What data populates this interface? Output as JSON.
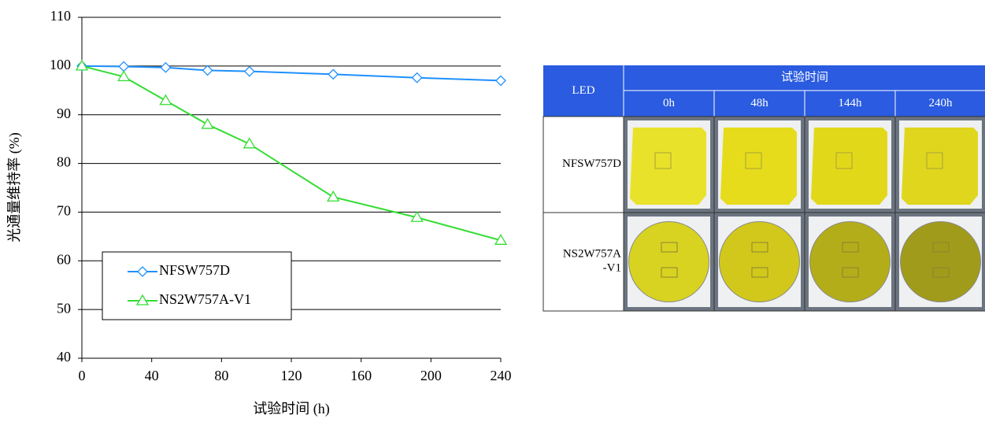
{
  "chart_data": {
    "type": "line",
    "x_label": "试验时间 (h)",
    "y_label": "光通量维持率 (%)",
    "x": [
      0,
      24,
      48,
      72,
      96,
      144,
      192,
      240
    ],
    "series": [
      {
        "name": "NFSW757D",
        "color": "#1e90ff",
        "marker": "diamond",
        "values": [
          100,
          99.9,
          99.7,
          99.1,
          98.9,
          98.3,
          97.6,
          97.0
        ]
      },
      {
        "name": "NS2W757A-V1",
        "color": "#33dd33",
        "marker": "triangle",
        "values": [
          100,
          97.8,
          92.9,
          88,
          84,
          73.1,
          68.9,
          64.2
        ]
      }
    ],
    "xlim": [
      0,
      240
    ],
    "xticks": [
      0,
      40,
      80,
      120,
      160,
      200,
      240
    ],
    "ylim": [
      40,
      110
    ],
    "yticks": [
      40,
      50,
      60,
      70,
      80,
      90,
      100,
      110
    ],
    "grid": true,
    "legend": "lower-left"
  },
  "table": {
    "corner": "LED",
    "group": "试验时间",
    "times": [
      "0h",
      "48h",
      "144h",
      "240h"
    ],
    "rows": [
      {
        "label": "NFSW757D"
      },
      {
        "label": "NS2W757A\n-V1"
      }
    ]
  }
}
